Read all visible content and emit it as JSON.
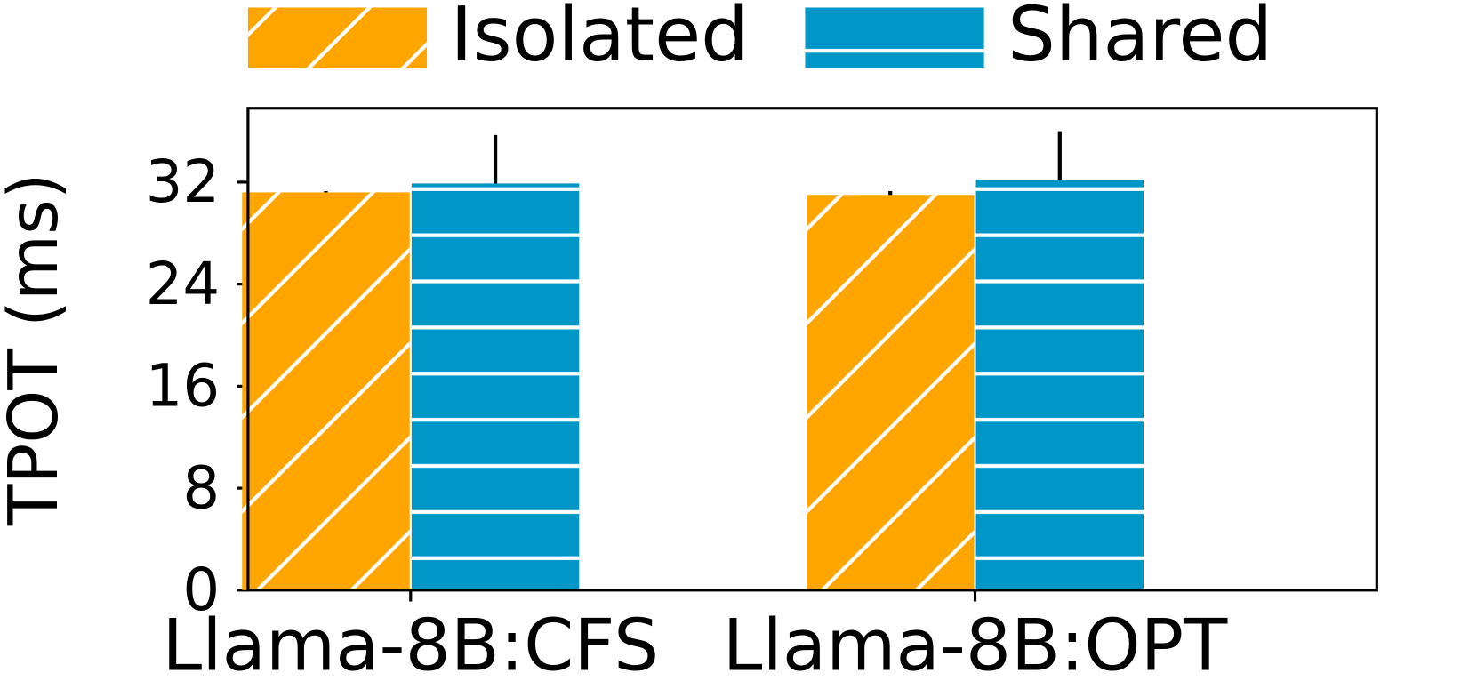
{
  "chart_data": {
    "type": "bar",
    "ylabel": "TPOT (ms)",
    "categories": [
      "Llama-8B:CFS",
      "Llama-8B:OPT"
    ],
    "series": [
      {
        "name": "Isolated",
        "color": "#ffa500",
        "hatch": "diagonal",
        "values": [
          31.2,
          31.0
        ],
        "errors": [
          0.1,
          0.3
        ]
      },
      {
        "name": "Shared",
        "color": "#0096c8",
        "hatch": "horizontal",
        "values": [
          31.9,
          32.2
        ],
        "errors": [
          3.8,
          3.8
        ]
      }
    ],
    "ylim": [
      0,
      37.8
    ],
    "yticks": [
      0,
      8,
      16,
      24,
      32
    ],
    "grid": false,
    "legend_position": "top"
  }
}
